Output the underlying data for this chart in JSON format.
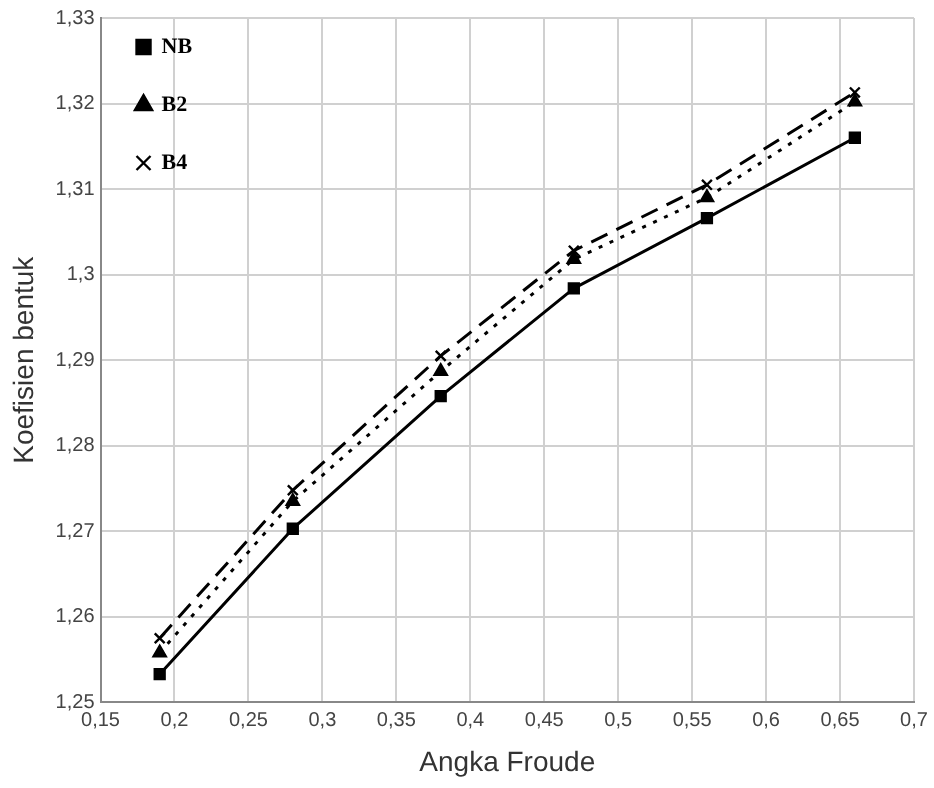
{
  "chart_data": {
    "type": "line",
    "xlabel": "Angka Froude",
    "ylabel": "Koefisien bentuk",
    "x": [
      0.19,
      0.28,
      0.38,
      0.47,
      0.56,
      0.66
    ],
    "series": [
      {
        "name": "NB",
        "color": "#000000",
        "marker": "square",
        "line_style": "solid",
        "values": [
          1.2533,
          1.2703,
          1.2858,
          1.2984,
          1.3066,
          1.316
        ]
      },
      {
        "name": "B2",
        "color": "#000000",
        "marker": "triangle",
        "line_style": "dotted",
        "values": [
          1.2558,
          1.2735,
          1.2887,
          1.3018,
          1.309,
          1.3202
        ]
      },
      {
        "name": "B4",
        "color": "#000000",
        "marker": "cross",
        "line_style": "dashed",
        "values": [
          1.2575,
          1.2748,
          1.2905,
          1.3028,
          1.3105,
          1.3213
        ]
      }
    ],
    "xlim": [
      0.15,
      0.7
    ],
    "xticks": [
      {
        "value": 0.15,
        "label": "0,15"
      },
      {
        "value": 0.2,
        "label": "0,2"
      },
      {
        "value": 0.25,
        "label": "0,25"
      },
      {
        "value": 0.3,
        "label": "0,3"
      },
      {
        "value": 0.35,
        "label": "0,35"
      },
      {
        "value": 0.4,
        "label": "0,4"
      },
      {
        "value": 0.45,
        "label": "0,45"
      },
      {
        "value": 0.5,
        "label": "0,5"
      },
      {
        "value": 0.55,
        "label": "0,55"
      },
      {
        "value": 0.6,
        "label": "0,6"
      },
      {
        "value": 0.65,
        "label": "0,65"
      },
      {
        "value": 0.7,
        "label": "0,7"
      }
    ],
    "ylim": [
      1.25,
      1.33
    ],
    "yticks": [
      {
        "value": 1.25,
        "label": "1,25"
      },
      {
        "value": 1.26,
        "label": "1,26"
      },
      {
        "value": 1.27,
        "label": "1,27"
      },
      {
        "value": 1.28,
        "label": "1,28"
      },
      {
        "value": 1.29,
        "label": "1,29"
      },
      {
        "value": 1.3,
        "label": "1,3"
      },
      {
        "value": 1.31,
        "label": "1,31"
      },
      {
        "value": 1.32,
        "label": "1,32"
      },
      {
        "value": 1.33,
        "label": "1,33"
      }
    ],
    "grid": true,
    "legend": "top left"
  }
}
